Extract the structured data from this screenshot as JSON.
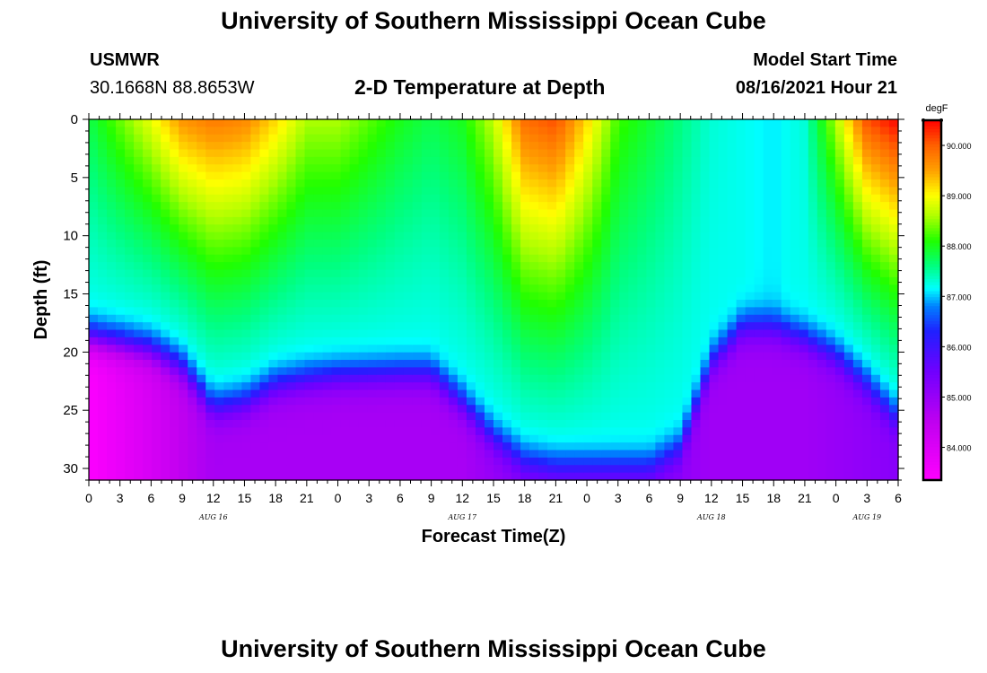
{
  "header": {
    "main_title": "University of Southern Mississippi Ocean Cube",
    "station": "USMWR",
    "coords": "30.1668N  88.8653W",
    "plot_title": "2-D Temperature at Depth",
    "model_label": "Model Start Time",
    "model_time": "08/16/2021 Hour 21"
  },
  "footer": {
    "title": "University of Southern Mississippi Ocean Cube"
  },
  "chart_data": {
    "type": "heatmap",
    "title": "2-D Temperature at Depth",
    "xlabel": "Forecast Time(Z)",
    "ylabel": "Depth (ft)",
    "x_range_hours": [
      0,
      78
    ],
    "xtick_labels": [
      "0",
      "3",
      "6",
      "9",
      "12",
      "15",
      "18",
      "21",
      "0",
      "3",
      "6",
      "9",
      "12",
      "15",
      "18",
      "21",
      "0",
      "3",
      "6",
      "9",
      "12",
      "15",
      "18",
      "21",
      "0",
      "3",
      "6"
    ],
    "date_labels": [
      {
        "label": "AUG 16",
        "hour": 12
      },
      {
        "label": "AUG 17",
        "hour": 36
      },
      {
        "label": "AUG 18",
        "hour": 60
      },
      {
        "label": "AUG 19",
        "hour": 75
      }
    ],
    "ylim": [
      31,
      0
    ],
    "ytick_labels": [
      "0",
      "5",
      "10",
      "15",
      "20",
      "25",
      "30"
    ],
    "ytick_values": [
      0,
      5,
      10,
      15,
      20,
      25,
      30
    ],
    "colorbar": {
      "unit": "degF",
      "min": 83.35,
      "max": 90.5,
      "tick_labels": [
        "84.000",
        "85.000",
        "86.000",
        "87.000",
        "88.000",
        "89.000",
        "90.000"
      ],
      "tick_values": [
        84,
        85,
        86,
        87,
        88,
        89,
        90
      ],
      "colors": [
        {
          "value": 83.35,
          "color": "#ff00ff"
        },
        {
          "value": 84.5,
          "color": "#c000f0"
        },
        {
          "value": 85.5,
          "color": "#7000ff"
        },
        {
          "value": 86.3,
          "color": "#2020ff"
        },
        {
          "value": 86.8,
          "color": "#0080ff"
        },
        {
          "value": 87.15,
          "color": "#00ffff"
        },
        {
          "value": 87.6,
          "color": "#00ff80"
        },
        {
          "value": 88.1,
          "color": "#20ff00"
        },
        {
          "value": 88.6,
          "color": "#b0ff00"
        },
        {
          "value": 89.0,
          "color": "#ffff00"
        },
        {
          "value": 89.5,
          "color": "#ffa000"
        },
        {
          "value": 90.0,
          "color": "#ff6000"
        },
        {
          "value": 90.5,
          "color": "#ff0000"
        }
      ]
    },
    "profiles": [
      {
        "hour": 0,
        "surface": 87.8,
        "mixed_depth": 18.0,
        "bottom": 83.4
      },
      {
        "hour": 6,
        "surface": 88.9,
        "mixed_depth": 19.0,
        "bottom": 84.1
      },
      {
        "hour": 9,
        "surface": 89.6,
        "mixed_depth": 20.5,
        "bottom": 84.5
      },
      {
        "hour": 12,
        "surface": 89.8,
        "mixed_depth": 24.0,
        "bottom": 84.8
      },
      {
        "hour": 15,
        "surface": 89.7,
        "mixed_depth": 23.5,
        "bottom": 84.8
      },
      {
        "hour": 18,
        "surface": 89.2,
        "mixed_depth": 22.0,
        "bottom": 84.8
      },
      {
        "hour": 21,
        "surface": 88.6,
        "mixed_depth": 21.5,
        "bottom": 84.8
      },
      {
        "hour": 24,
        "surface": 88.6,
        "mixed_depth": 21.2,
        "bottom": 84.8
      },
      {
        "hour": 30,
        "surface": 88.0,
        "mixed_depth": 21.0,
        "bottom": 84.8
      },
      {
        "hour": 33,
        "surface": 87.8,
        "mixed_depth": 21.0,
        "bottom": 84.8
      },
      {
        "hour": 36,
        "surface": 88.0,
        "mixed_depth": 23.5,
        "bottom": 84.8
      },
      {
        "hour": 39,
        "surface": 88.7,
        "mixed_depth": 26.5,
        "bottom": 85.0
      },
      {
        "hour": 42,
        "surface": 89.9,
        "mixed_depth": 28.5,
        "bottom": 85.2
      },
      {
        "hour": 45,
        "surface": 90.1,
        "mixed_depth": 29.0,
        "bottom": 85.2
      },
      {
        "hour": 48,
        "surface": 89.2,
        "mixed_depth": 29.0,
        "bottom": 85.2
      },
      {
        "hour": 51,
        "surface": 88.2,
        "mixed_depth": 29.0,
        "bottom": 85.2
      },
      {
        "hour": 54,
        "surface": 87.9,
        "mixed_depth": 29.0,
        "bottom": 85.2
      },
      {
        "hour": 57,
        "surface": 87.6,
        "mixed_depth": 27.5,
        "bottom": 85.1
      },
      {
        "hour": 60,
        "surface": 87.3,
        "mixed_depth": 20.0,
        "bottom": 84.9
      },
      {
        "hour": 63,
        "surface": 87.2,
        "mixed_depth": 17.0,
        "bottom": 84.9
      },
      {
        "hour": 66,
        "surface": 87.1,
        "mixed_depth": 17.0,
        "bottom": 84.9
      },
      {
        "hour": 69,
        "surface": 87.3,
        "mixed_depth": 18.0,
        "bottom": 84.9
      },
      {
        "hour": 72,
        "surface": 88.6,
        "mixed_depth": 19.5,
        "bottom": 85.0
      },
      {
        "hour": 75,
        "surface": 90.1,
        "mixed_depth": 22.0,
        "bottom": 85.1
      },
      {
        "hour": 78,
        "surface": 90.5,
        "mixed_depth": 25.0,
        "bottom": 85.2
      }
    ]
  }
}
